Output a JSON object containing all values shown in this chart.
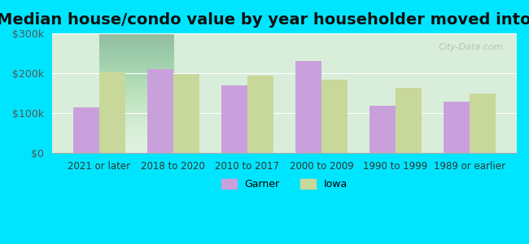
{
  "title": "Median house/condo value by year householder moved into unit",
  "categories": [
    "2021 or later",
    "2018 to 2020",
    "2010 to 2017",
    "2000 to 2009",
    "1990 to 1999",
    "1989 or earlier"
  ],
  "garner_values": [
    115000,
    210000,
    170000,
    232000,
    120000,
    130000
  ],
  "iowa_values": [
    205000,
    198000,
    195000,
    185000,
    163000,
    150000
  ],
  "garner_color": "#c9a0dc",
  "iowa_color": "#c8d89a",
  "background_outer": "#00e5ff",
  "background_inner_top": "#e8f5e9",
  "background_inner_bottom": "#ffffff",
  "ylim": [
    0,
    300000
  ],
  "yticks": [
    0,
    100000,
    200000,
    300000
  ],
  "ytick_labels": [
    "$0",
    "$100k",
    "$200k",
    "$300k"
  ],
  "title_fontsize": 14,
  "legend_labels": [
    "Garner",
    "Iowa"
  ],
  "watermark": "City-Data.com"
}
